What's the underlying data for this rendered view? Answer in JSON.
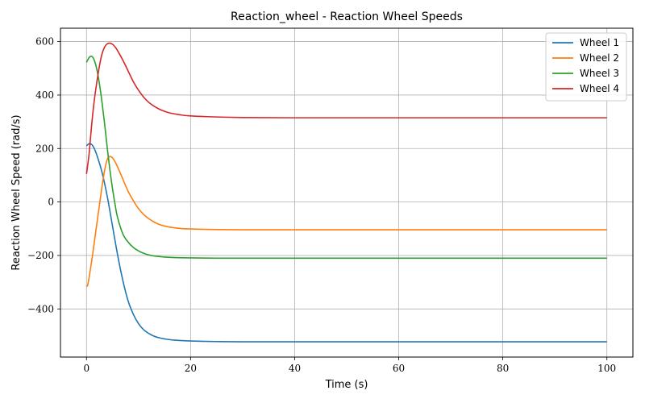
{
  "chart_data": {
    "type": "line",
    "title": "Reaction_wheel - Reaction Wheel Speeds",
    "xlabel": "Time (s)",
    "ylabel": "Reaction Wheel Speed (rad/s)",
    "xlim": [
      -5,
      105
    ],
    "ylim": [
      -580,
      650
    ],
    "xticks": [
      0,
      20,
      40,
      60,
      80,
      100
    ],
    "yticks": [
      -400,
      -200,
      0,
      200,
      400,
      600
    ],
    "grid": true,
    "legend_position": "top-right",
    "series": [
      {
        "name": "Wheel 1",
        "color": "#1f77b4",
        "x": [
          0,
          0.5,
          1,
          1.5,
          2,
          3,
          4,
          5,
          6,
          7,
          8,
          9,
          10,
          11,
          12,
          13,
          14,
          15,
          17,
          20,
          25,
          30,
          40,
          60,
          80,
          100
        ],
        "y": [
          210,
          218,
          215,
          200,
          175,
          110,
          20,
          -90,
          -200,
          -295,
          -370,
          -420,
          -455,
          -478,
          -492,
          -502,
          -508,
          -512,
          -517,
          -520,
          -522,
          -523,
          -523,
          -523,
          -523,
          -523
        ]
      },
      {
        "name": "Wheel 2",
        "color": "#ff7f0e",
        "x": [
          0,
          0.3,
          1,
          1.5,
          2,
          2.5,
          3,
          3.5,
          4,
          4.5,
          5,
          5.5,
          6,
          7,
          8,
          9,
          10,
          11,
          12,
          13,
          14,
          15,
          16,
          18,
          20,
          25,
          30,
          40,
          60,
          80,
          100
        ],
        "y": [
          -315,
          -305,
          -220,
          -150,
          -80,
          -10,
          60,
          120,
          160,
          170,
          165,
          150,
          130,
          85,
          40,
          5,
          -25,
          -47,
          -63,
          -75,
          -84,
          -90,
          -94,
          -99,
          -101,
          -103,
          -104,
          -104,
          -104,
          -104,
          -104
        ]
      },
      {
        "name": "Wheel 3",
        "color": "#2ca02c",
        "x": [
          0,
          0.5,
          1,
          1.5,
          2,
          2.5,
          3,
          3.5,
          4,
          4.5,
          5,
          5.5,
          6,
          7,
          8,
          9,
          10,
          11,
          12,
          13,
          14,
          15,
          17,
          20,
          25,
          30,
          40,
          60,
          80,
          100
        ],
        "y": [
          522,
          540,
          545,
          530,
          495,
          440,
          370,
          290,
          200,
          120,
          50,
          -10,
          -60,
          -120,
          -150,
          -170,
          -183,
          -192,
          -198,
          -202,
          -204,
          -206,
          -208,
          -209,
          -210,
          -210,
          -210,
          -210,
          -210,
          -210
        ]
      },
      {
        "name": "Wheel 4",
        "color": "#d62728",
        "x": [
          0,
          0.5,
          1,
          1.5,
          2,
          2.5,
          3,
          3.5,
          4,
          4.5,
          5,
          5.5,
          6,
          7,
          8,
          9,
          10,
          11,
          12,
          13,
          14,
          15,
          16,
          18,
          20,
          25,
          30,
          40,
          60,
          80,
          100
        ],
        "y": [
          105,
          180,
          290,
          380,
          450,
          510,
          555,
          580,
          592,
          594,
          590,
          580,
          565,
          530,
          490,
          450,
          418,
          392,
          372,
          358,
          347,
          339,
          333,
          326,
          322,
          318,
          316,
          315,
          315,
          315,
          315
        ]
      }
    ]
  }
}
